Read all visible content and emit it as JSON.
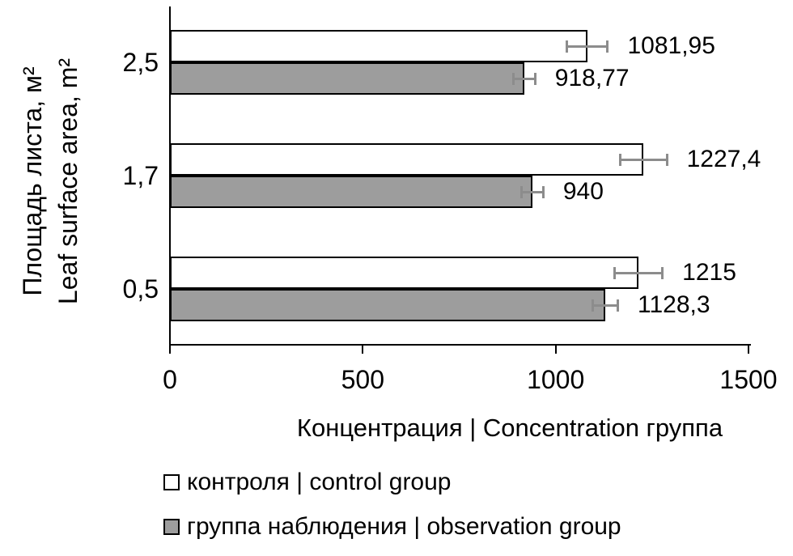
{
  "chart_data": {
    "type": "bar",
    "orientation": "horizontal",
    "title": "",
    "categories": [
      "2,5",
      "1,7",
      "0,5"
    ],
    "series": [
      {
        "key": "control",
        "name": "контроля | control group",
        "color": "#ffffff",
        "border_color": "#000000",
        "values": [
          1081.95,
          1227.4,
          1215
        ],
        "value_labels": [
          "1081,95",
          "1227,4",
          "1215"
        ],
        "errors": [
          54,
          62,
          63
        ]
      },
      {
        "key": "observation",
        "name": "группа наблюдения | observation group",
        "color": "#9d9d9d",
        "border_color": "#000000",
        "values": [
          918.77,
          940,
          1128.3
        ],
        "value_labels": [
          "918,77",
          "940",
          "1128,3"
        ],
        "errors": [
          29,
          29,
          34
        ]
      }
    ],
    "xlabel": "Концентрация | Concentration группа",
    "ylabel_lines": [
      "Площадь листа, м²",
      "Leaf surface area, m²"
    ],
    "xlim": [
      0,
      1500
    ],
    "xticks": [
      0,
      500,
      1000,
      1500
    ],
    "xtick_labels": [
      "0",
      "500",
      "1000",
      "1500"
    ],
    "grid": false,
    "legend_position": "bottom-left",
    "error_bar_color": "#8c8c8c",
    "axis_color": "#000000",
    "text_color": "#000000",
    "background_color": "#ffffff"
  },
  "legend": {
    "items": [
      {
        "label": "контроля | control group",
        "color": "#ffffff"
      },
      {
        "label": "группа наблюдения | observation group",
        "color": "#9d9d9d"
      }
    ]
  }
}
